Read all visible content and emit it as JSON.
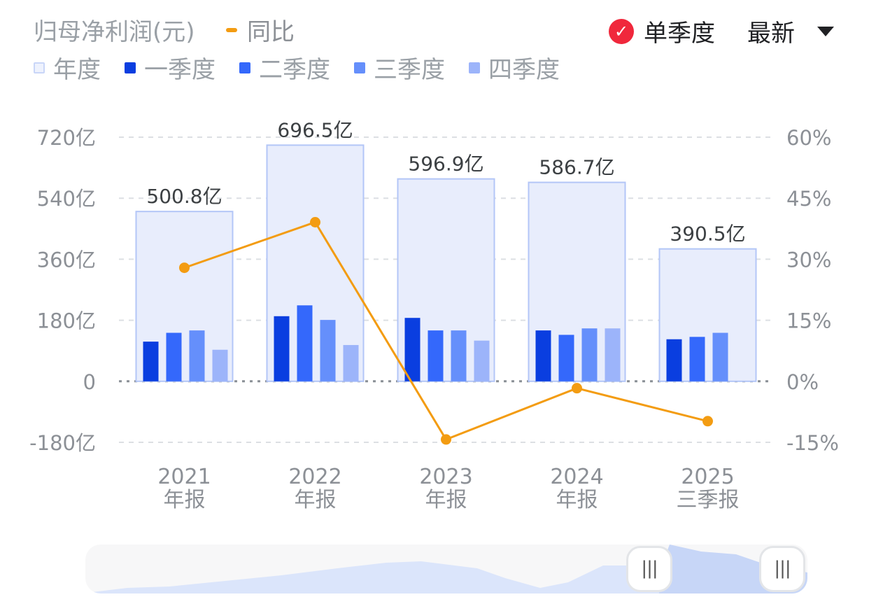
{
  "header": {
    "title": "归母净利润(元)",
    "yoy_label": "同比",
    "single_quarter_label": "单季度",
    "period_select": "最新"
  },
  "legend": {
    "items": [
      {
        "label": "年度",
        "color": "#e9eefc"
      },
      {
        "label": "一季度",
        "color": "#0a3ee0"
      },
      {
        "label": "二季度",
        "color": "#3468fb"
      },
      {
        "label": "三季度",
        "color": "#658ffb"
      },
      {
        "label": "四季度",
        "color": "#9cb4fa"
      }
    ]
  },
  "colors": {
    "annual_fill": "#e8edfc",
    "annual_stroke": "#b3c6f7",
    "yoy_line": "#f39c12",
    "check_badge": "#f0283c"
  },
  "chart_data": {
    "type": "bar",
    "categories": [
      "2021 年报",
      "2022 年报",
      "2023 年报",
      "2024 年报",
      "2025 三季报"
    ],
    "category_lines": [
      [
        "2021",
        "年报"
      ],
      [
        "2022",
        "年报"
      ],
      [
        "2023",
        "年报"
      ],
      [
        "2024",
        "年报"
      ],
      [
        "2025",
        "三季报"
      ]
    ],
    "annual": {
      "name": "年度",
      "values": [
        500.8,
        696.5,
        596.9,
        586.7,
        390.5
      ],
      "labels": [
        "500.8亿",
        "696.5亿",
        "596.9亿",
        "586.7亿",
        "390.5亿"
      ]
    },
    "series": [
      {
        "name": "一季度",
        "values": [
          117,
          192,
          187,
          150,
          124
        ]
      },
      {
        "name": "二季度",
        "values": [
          143,
          224,
          150,
          137,
          131
        ]
      },
      {
        "name": "三季度",
        "values": [
          150,
          181,
          150,
          156,
          143
        ]
      },
      {
        "name": "四季度",
        "values": [
          93,
          107,
          120,
          156,
          null
        ]
      }
    ],
    "yoy": {
      "name": "同比",
      "values": [
        27.9,
        39.1,
        -14.3,
        -1.7,
        -9.8
      ]
    },
    "y_left": {
      "min": -180,
      "max": 720,
      "ticks": [
        720,
        540,
        360,
        180,
        0,
        -180
      ],
      "tick_labels": [
        "720亿",
        "540亿",
        "360亿",
        "180亿",
        "0",
        "-180亿"
      ]
    },
    "y_right": {
      "min": -15,
      "max": 60,
      "ticks": [
        60,
        45,
        30,
        15,
        0,
        -15
      ],
      "tick_labels": [
        "60%",
        "45%",
        "30%",
        "15%",
        "0%",
        "-15%"
      ]
    },
    "grid": true
  }
}
